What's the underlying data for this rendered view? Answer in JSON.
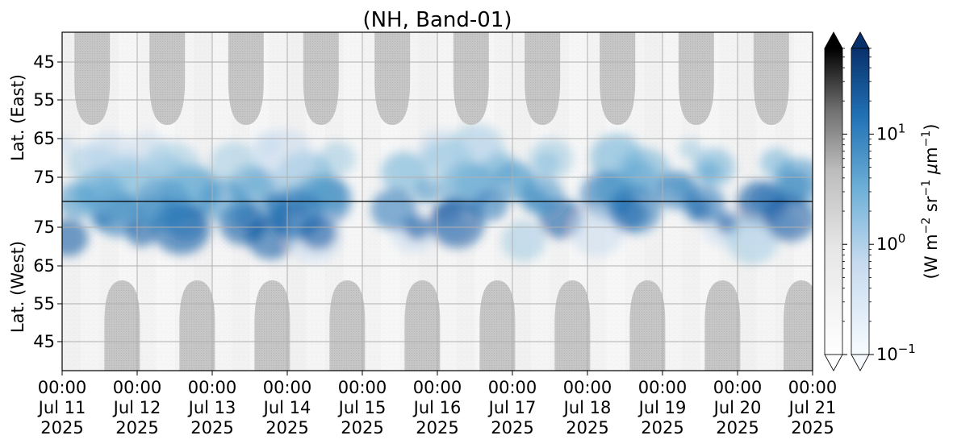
{
  "chart_data": {
    "type": "heatmap",
    "title": "(NH, Band-01)",
    "x_axis": {
      "range": [
        "2025-07-11 00:00",
        "2025-07-21 00:00"
      ],
      "ticks": [
        {
          "time": "00:00",
          "date": "Jul 11",
          "year": "2025"
        },
        {
          "time": "00:00",
          "date": "Jul 12",
          "year": "2025"
        },
        {
          "time": "00:00",
          "date": "Jul 13",
          "year": "2025"
        },
        {
          "time": "00:00",
          "date": "Jul 14",
          "year": "2025"
        },
        {
          "time": "00:00",
          "date": "Jul 15",
          "year": "2025"
        },
        {
          "time": "00:00",
          "date": "Jul 16",
          "year": "2025"
        },
        {
          "time": "00:00",
          "date": "Jul 17",
          "year": "2025"
        },
        {
          "time": "00:00",
          "date": "Jul 18",
          "year": "2025"
        },
        {
          "time": "00:00",
          "date": "Jul 19",
          "year": "2025"
        },
        {
          "time": "00:00",
          "date": "Jul 20",
          "year": "2025"
        },
        {
          "time": "00:00",
          "date": "Jul 21",
          "year": "2025"
        }
      ]
    },
    "y_axis_top": {
      "label": "Lat. (East)",
      "ticks": [
        "45",
        "55",
        "65",
        "75"
      ]
    },
    "y_axis_bottom": {
      "label": "Lat. (West)",
      "ticks": [
        "75",
        "65",
        "55",
        "45"
      ]
    },
    "grid": true,
    "colorbars": [
      {
        "name": "gray",
        "colormap": "Greys",
        "scale": "log",
        "range": [
          0.1,
          60
        ],
        "extend": "both"
      },
      {
        "name": "blue",
        "colormap": "Blues",
        "scale": "log",
        "range": [
          0.1,
          60
        ],
        "extend": "both"
      }
    ],
    "colorbar_ticks": [
      "10^-1",
      "10^0",
      "10^1"
    ],
    "colorbar_label": "(W m^-2 sr^-1 μm^-1)",
    "radiance_blobs_day_offset": [
      0.4,
      0.8,
      1.5,
      2.5,
      3.3,
      4.8,
      5.5,
      6.3,
      7.4,
      8.5,
      9.5
    ]
  }
}
